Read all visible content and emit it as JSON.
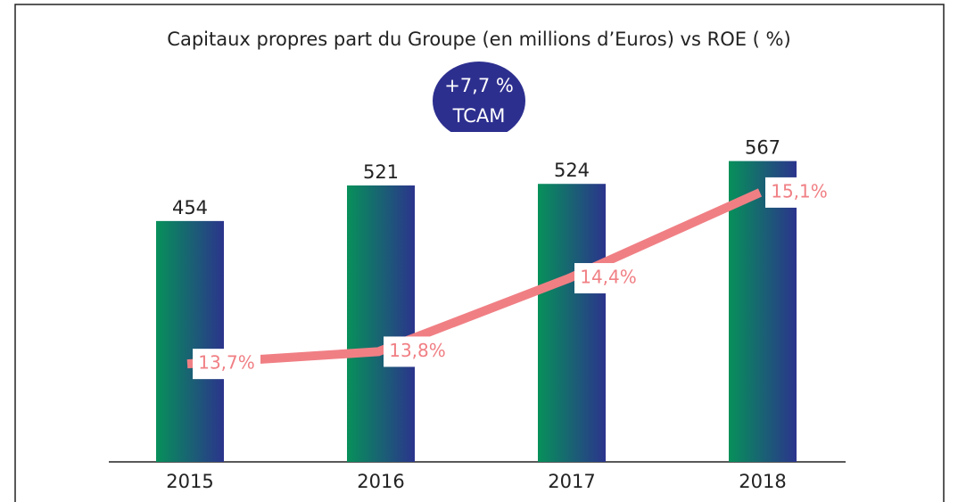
{
  "chart_data": {
    "type": "bar",
    "title": "Capitaux propres part du Groupe (en millions d’Euros) vs ROE ( %)",
    "annotations": [
      "+7,7 %",
      "TCAM"
    ],
    "categories": [
      "2015",
      "2016",
      "2017",
      "2018"
    ],
    "series": [
      {
        "type": "bar",
        "color": [
          "#07905a",
          "#2b348c"
        ],
        "values": [
          454,
          521,
          524,
          567
        ]
      },
      {
        "type": "line",
        "axis": "y2",
        "color": "#f07f84",
        "values": [
          13.7,
          13.8,
          14.4,
          15.1
        ],
        "value_labels": [
          "13,7%",
          "13,8%",
          "14,4%",
          "15,1%"
        ]
      }
    ],
    "ylim": [
      0,
      600
    ],
    "y2lim": [
      12.9,
      15.5
    ]
  }
}
